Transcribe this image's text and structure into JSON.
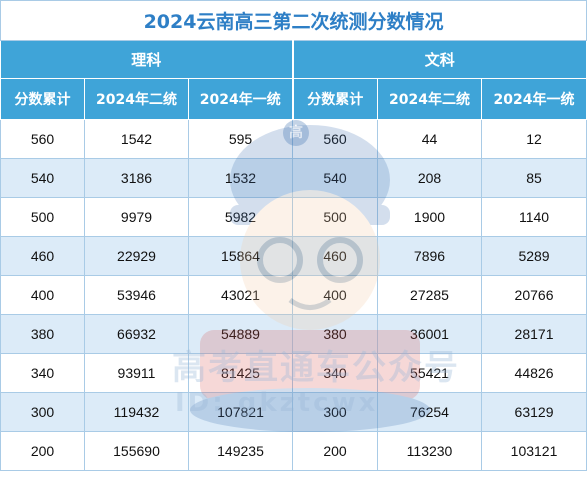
{
  "title": "2024云南高三第二次统测分数情况",
  "groups": {
    "science": "理科",
    "arts": "文科"
  },
  "headers": [
    "分数累计",
    "2024年二统",
    "2024年一统",
    "分数累计",
    "2024年二统",
    "2024年一统"
  ],
  "rows": [
    [
      "560",
      "1542",
      "595",
      "560",
      "44",
      "12"
    ],
    [
      "540",
      "3186",
      "1532",
      "540",
      "208",
      "85"
    ],
    [
      "500",
      "9979",
      "5982",
      "500",
      "1900",
      "1140"
    ],
    [
      "460",
      "22929",
      "15864",
      "460",
      "7896",
      "5289"
    ],
    [
      "400",
      "53946",
      "43021",
      "400",
      "27285",
      "20766"
    ],
    [
      "380",
      "66932",
      "54889",
      "380",
      "36001",
      "28171"
    ],
    [
      "340",
      "93911",
      "81425",
      "340",
      "55421",
      "44826"
    ],
    [
      "300",
      "119432",
      "107821",
      "300",
      "76254",
      "63129"
    ],
    [
      "200",
      "155690",
      "149235",
      "200",
      "113230",
      "103121"
    ]
  ],
  "watermark": {
    "badge": "高",
    "text": "高考直通车公众号",
    "id": "ID: gkztcwx"
  },
  "colors": {
    "header_bg": "#3fa4d8",
    "title_text": "#2e7fc6",
    "alt_row_bg": "#dcebf8",
    "border": "#a9cbe6"
  }
}
